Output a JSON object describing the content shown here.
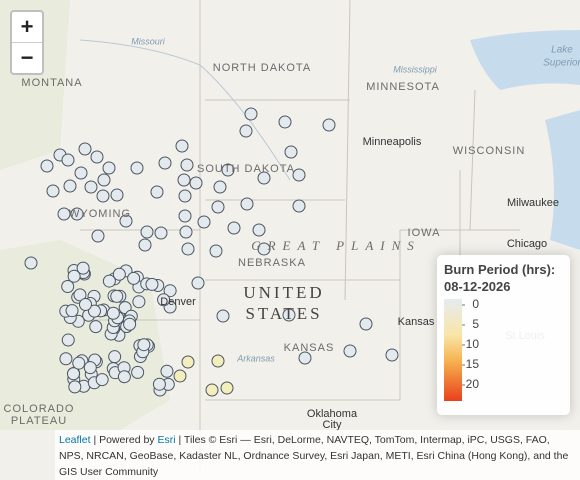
{
  "zoom": {
    "in": "+",
    "out": "−"
  },
  "places": [
    "Missouri",
    "MONTANA",
    "NORTH DAKOTA",
    "MINNESOTA",
    "Mississippi",
    "Lake",
    "Superior",
    "Minneapolis",
    "WISCONSIN",
    "SOUTH DAKOTA",
    "WYOMING",
    "Milwaukee",
    "IOWA",
    "GREAT PLAINS",
    "Chicago",
    "NEBRASKA",
    "UNITED",
    "STATES",
    "Denver",
    "Kansas",
    "St Louis",
    "KANSAS",
    "Arkansas",
    "COLORADO",
    "PLATEAU",
    "Oklahoma",
    "City"
  ],
  "legend": {
    "title": "Burn Period (hrs):",
    "date": "08-12-2026",
    "ticks": [
      0,
      5,
      10,
      15,
      20
    ]
  },
  "attribution": {
    "leaflet": "Leaflet",
    "powered": " | Powered by ",
    "esri": "Esri",
    "tiles": " | Tiles © Esri — Esri, DeLorme, NAVTEQ, TomTom, Intermap, iPC, USGS, FAO, NPS, NRCAN, GeoBase, Kadaster NL, Ordnance Survey, Esri Japan, METI, Esri China (Hong Kong), and the GIS User Community"
  }
}
